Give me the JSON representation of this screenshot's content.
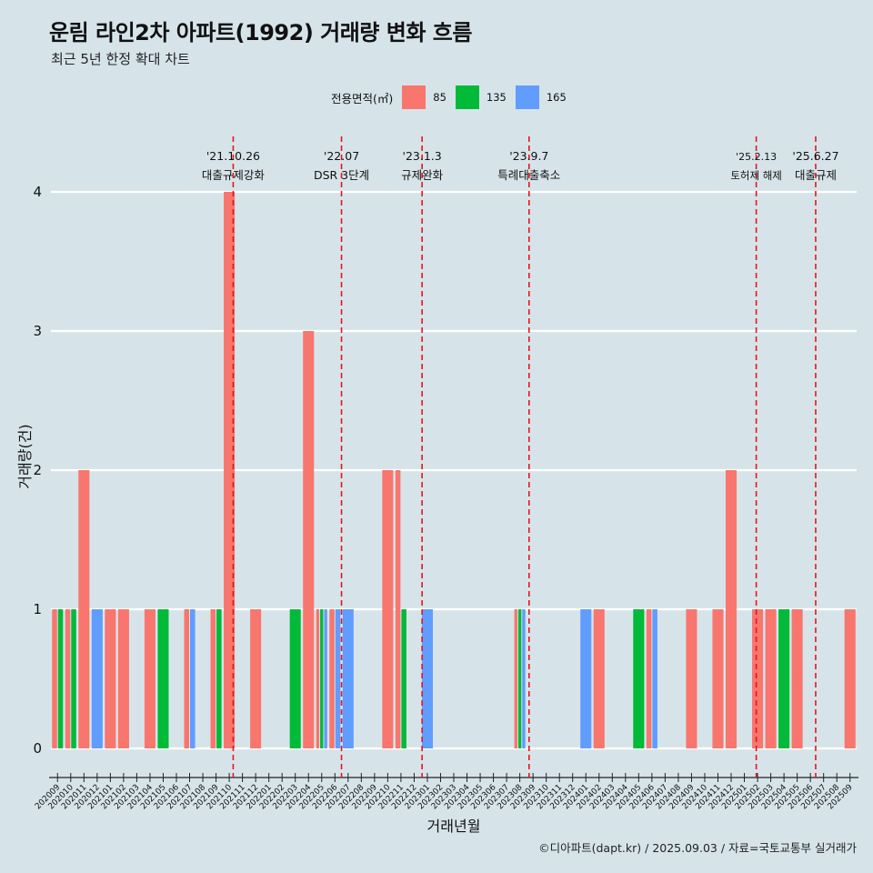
{
  "title": "운림 라인2차 아파트(1992) 거래량 변화 흐름",
  "subtitle": "최근 5년 한정 확대 차트",
  "legend": {
    "title": "전용면적(㎡)"
  },
  "caption": "©디아파트(dapt.kr) / 2025.09.03 / 자료=국토교통부 실거래가",
  "chart_data": {
    "type": "bar",
    "xlabel": "거래년월",
    "ylabel": "거래량(건)",
    "ylim": [
      0,
      4
    ],
    "yticks": [
      0,
      1,
      2,
      3,
      4
    ],
    "categories": [
      "202009",
      "202010",
      "202011",
      "202012",
      "202101",
      "202102",
      "202103",
      "202104",
      "202105",
      "202106",
      "202107",
      "202108",
      "202109",
      "202110",
      "202111",
      "202112",
      "202201",
      "202202",
      "202203",
      "202204",
      "202205",
      "202206",
      "202207",
      "202208",
      "202209",
      "202210",
      "202211",
      "202212",
      "202301",
      "202302",
      "202303",
      "202304",
      "202305",
      "202306",
      "202307",
      "202308",
      "202309",
      "202310",
      "202311",
      "202312",
      "202401",
      "202402",
      "202403",
      "202404",
      "202405",
      "202406",
      "202407",
      "202408",
      "202409",
      "202410",
      "202411",
      "202412",
      "202501",
      "202502",
      "202503",
      "202504",
      "202505",
      "202506",
      "202507",
      "202508",
      "202509"
    ],
    "series": [
      {
        "name": "85",
        "color": "#f8766d",
        "values": [
          1,
          1,
          2,
          0,
          1,
          1,
          0,
          1,
          0,
          0,
          1,
          0,
          1,
          4,
          0,
          1,
          0,
          0,
          0,
          3,
          1,
          1,
          0,
          0,
          0,
          2,
          2,
          0,
          0,
          0,
          0,
          0,
          0,
          0,
          0,
          1,
          0,
          0,
          0,
          0,
          0,
          1,
          0,
          0,
          0,
          1,
          0,
          0,
          1,
          0,
          1,
          2,
          0,
          1,
          1,
          0,
          1,
          0,
          0,
          0,
          1
        ]
      },
      {
        "name": "135",
        "color": "#00ba38",
        "values": [
          1,
          1,
          0,
          0,
          0,
          0,
          0,
          0,
          1,
          0,
          0,
          0,
          1,
          0,
          0,
          0,
          0,
          0,
          1,
          0,
          1,
          0,
          0,
          0,
          0,
          0,
          1,
          0,
          0,
          0,
          0,
          0,
          0,
          0,
          0,
          1,
          0,
          0,
          0,
          0,
          0,
          0,
          0,
          0,
          1,
          0,
          0,
          0,
          0,
          0,
          0,
          0,
          0,
          0,
          0,
          1,
          0,
          0,
          0,
          0,
          0
        ]
      },
      {
        "name": "165",
        "color": "#619cff",
        "values": [
          0,
          0,
          0,
          1,
          0,
          0,
          0,
          0,
          0,
          0,
          1,
          0,
          0,
          0,
          0,
          0,
          0,
          0,
          0,
          0,
          1,
          1,
          1,
          0,
          0,
          0,
          0,
          0,
          1,
          0,
          0,
          0,
          0,
          0,
          0,
          1,
          0,
          0,
          0,
          0,
          1,
          0,
          0,
          0,
          0,
          1,
          0,
          0,
          0,
          0,
          0,
          0,
          0,
          0,
          0,
          0,
          0,
          0,
          0,
          0,
          0
        ]
      }
    ],
    "events": [
      {
        "date": "'21.10.26",
        "label": "대출규제강화",
        "index": 13.8
      },
      {
        "date": "'22.07",
        "label": "DSR 3단계",
        "index": 22.0
      },
      {
        "date": "'23.1.3",
        "label": "규제완화",
        "index": 28.1
      },
      {
        "date": "'23.9.7",
        "label": "특례대출축소",
        "index": 36.2
      },
      {
        "date": "'25.2.13",
        "label": "토허제 해제",
        "index": 53.4
      },
      {
        "date": "'25.6.27",
        "label": "대출규제",
        "index": 57.9
      }
    ]
  }
}
